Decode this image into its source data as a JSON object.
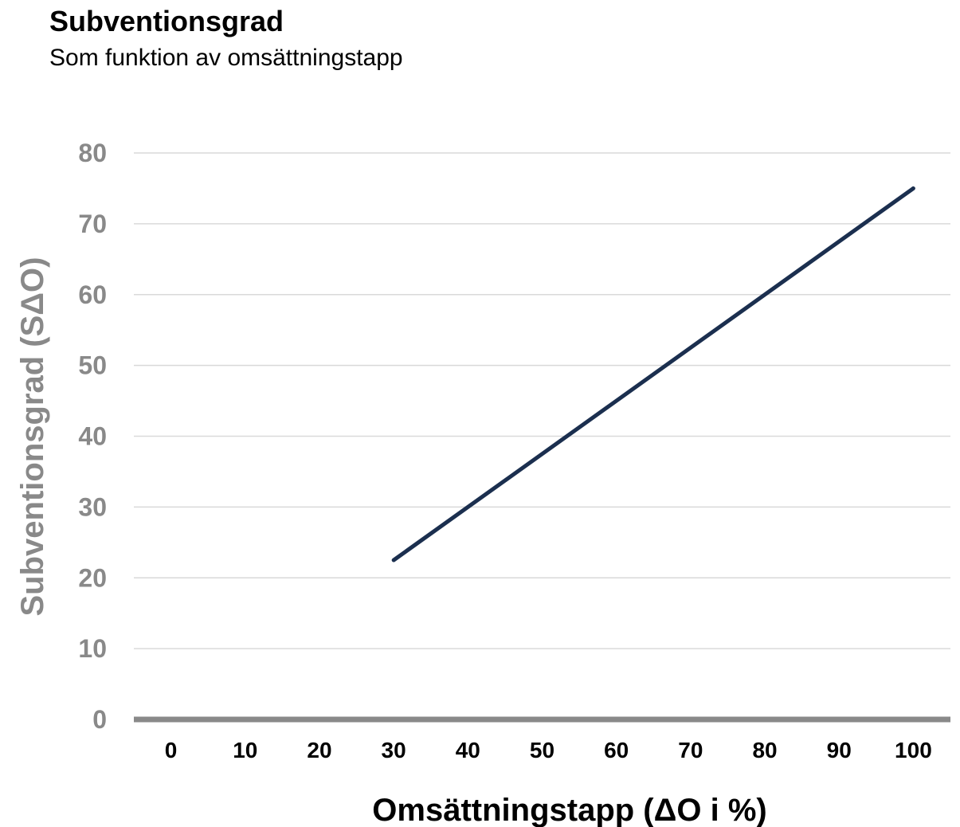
{
  "chart_data": {
    "type": "line",
    "title": "Subventionsgrad",
    "subtitle": "Som funktion av omsättningstapp",
    "xlabel": "Omsättningstapp (ΔO i %)",
    "ylabel": "Subventionsgrad (SΔO)",
    "x_ticks": [
      0,
      10,
      20,
      30,
      40,
      50,
      60,
      70,
      80,
      90,
      100
    ],
    "y_ticks": [
      0,
      10,
      20,
      30,
      40,
      50,
      60,
      70,
      80
    ],
    "xlim": [
      -5,
      105
    ],
    "ylim": [
      0,
      80
    ],
    "grid": true,
    "legend": "none",
    "series": [
      {
        "x": [
          30,
          100
        ],
        "y": [
          22.5,
          75
        ],
        "color": "#1b2f4f"
      }
    ]
  },
  "colors": {
    "line": "#1b2f4f",
    "gridline": "#d9d9d9",
    "baseline": "#898989",
    "ytick": "#898989"
  }
}
